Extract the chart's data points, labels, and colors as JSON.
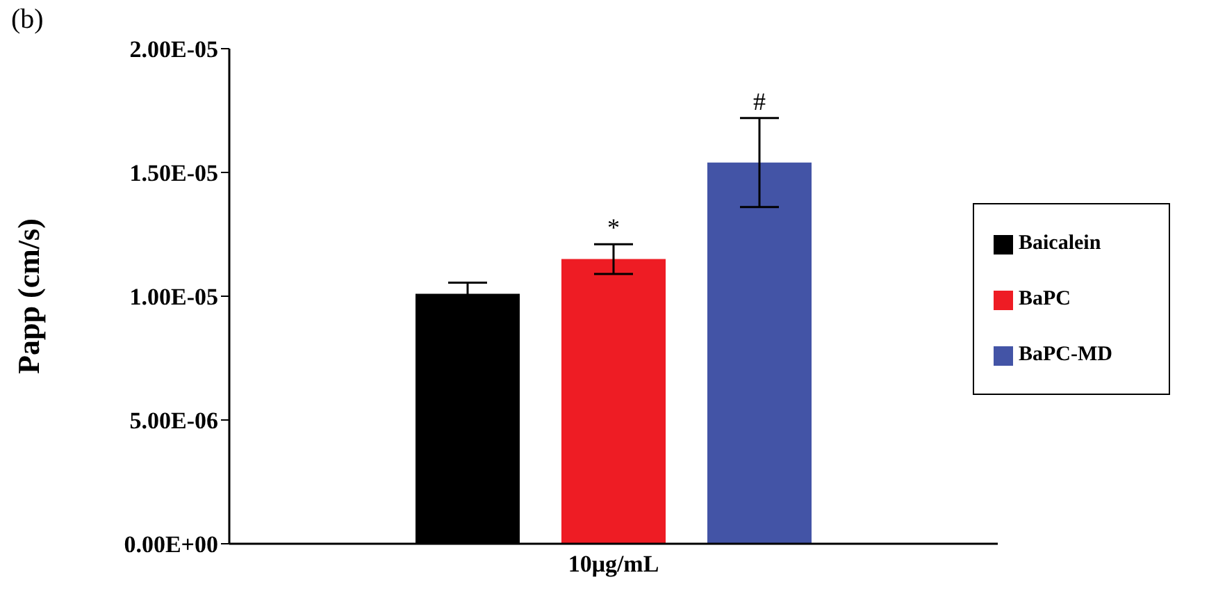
{
  "chart_data": {
    "type": "bar",
    "ylabel": "Papp (cm/s)",
    "categories": [
      "10μg/mL"
    ],
    "series": [
      {
        "name": "Baicalein",
        "color": "#000000",
        "values": [
          1.01e-05
        ],
        "errors": [
          4.5e-07
        ]
      },
      {
        "name": "BaPC",
        "color": "#ee1c24",
        "values": [
          1.15e-05
        ],
        "errors": [
          6e-07
        ],
        "value_labels": [
          "*"
        ]
      },
      {
        "name": "BaPC-MD",
        "color": "#4354a6",
        "values": [
          1.54e-05
        ],
        "errors": [
          1.8e-06
        ],
        "value_labels": [
          "#"
        ]
      }
    ],
    "ylim": [
      0,
      2e-05
    ],
    "yticks": [
      {
        "value": 0,
        "label": "0.00E+00"
      },
      {
        "value": 5e-06,
        "label": "5.00E-06"
      },
      {
        "value": 1e-05,
        "label": "1.00E-05"
      },
      {
        "value": 1.5e-05,
        "label": "1.50E-05"
      },
      {
        "value": 2e-05,
        "label": "2.00E-05"
      }
    ],
    "annotations": [
      "(b)"
    ],
    "grid": false,
    "legend": "right"
  }
}
